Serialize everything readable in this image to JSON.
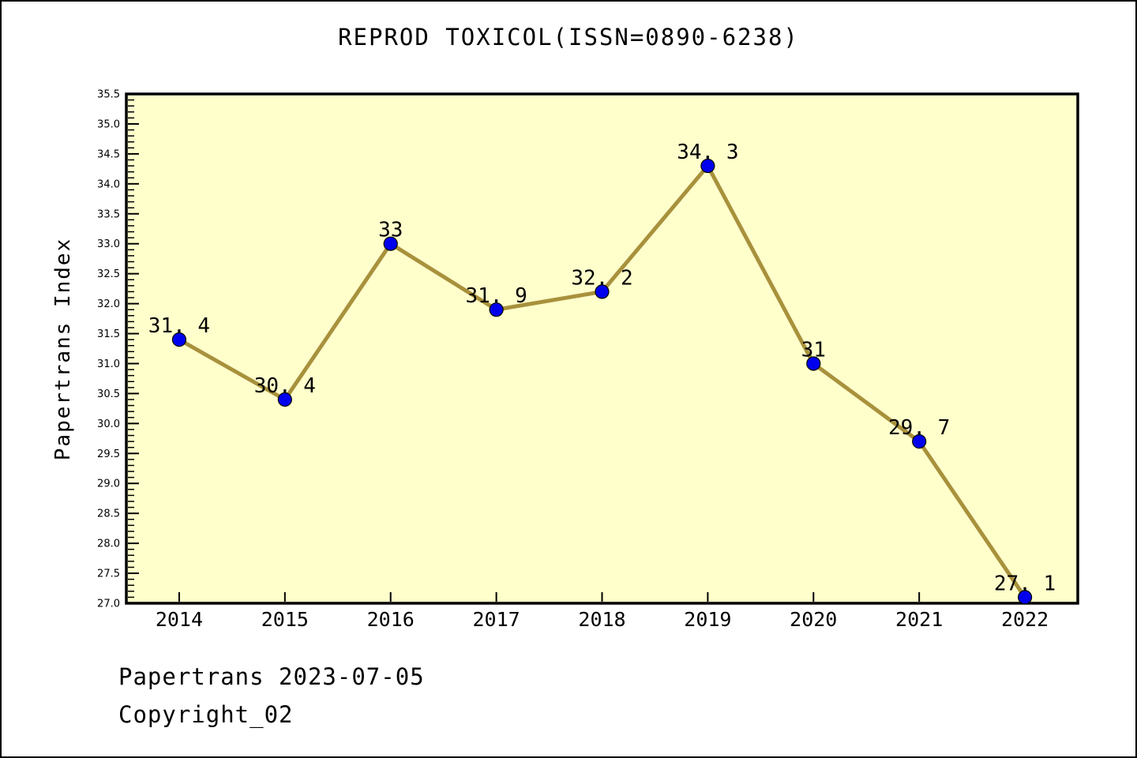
{
  "title": "REPROD TOXICOL(ISSN=0890-6238)",
  "footer": {
    "line1": "Papertrans 2023-07-05",
    "line2": "Copyright_02"
  },
  "chart_data": {
    "type": "line",
    "title": "REPROD TOXICOL(ISSN=0890-6238)",
    "xlabel": "",
    "ylabel": "Papertrans Index",
    "categories": [
      "2014",
      "2015",
      "2016",
      "2017",
      "2018",
      "2019",
      "2020",
      "2021",
      "2022"
    ],
    "values": [
      31.4,
      30.4,
      33,
      31.9,
      32.2,
      34.3,
      31,
      29.7,
      27.1
    ],
    "point_labels": [
      "31.4",
      "30.4",
      "33",
      "31.9",
      "32.2",
      "34.3",
      "31",
      "29.7",
      "27.1"
    ],
    "ylim": [
      27.0,
      35.5
    ],
    "ytick_step": 0.5,
    "yminor_step": 0.1,
    "grid": false,
    "legend": null,
    "colors": {
      "line": "#A8913C",
      "marker_fill": "#0000EE",
      "marker_edge": "#000000",
      "plot_bg": "#FFFFCC",
      "axis": "#000000",
      "text": "#000000",
      "figure_bg": "#FFFFFF"
    }
  }
}
